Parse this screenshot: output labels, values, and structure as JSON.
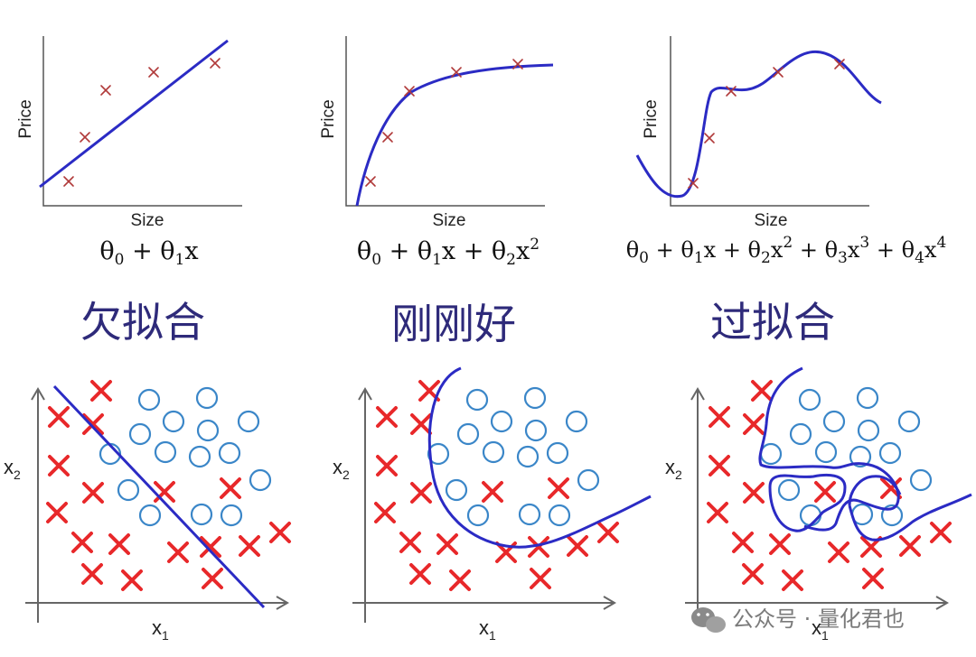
{
  "regression_panels": [
    {
      "xlabel": "Size",
      "ylabel": "Price",
      "formula": "θ0 + θ1x",
      "formula_parts": [
        {
          "t": "θ"
        },
        {
          "t": "0",
          "sub": true
        },
        {
          "t": " + θ"
        },
        {
          "t": "1",
          "sub": true
        },
        {
          "t": "x"
        }
      ]
    },
    {
      "xlabel": "Size",
      "ylabel": "Price",
      "formula": "θ0 + θ1x + θ2x2",
      "formula_parts": [
        {
          "t": "θ"
        },
        {
          "t": "0",
          "sub": true
        },
        {
          "t": " + θ"
        },
        {
          "t": "1",
          "sub": true
        },
        {
          "t": "x + θ"
        },
        {
          "t": "2",
          "sub": true
        },
        {
          "t": "x"
        },
        {
          "t": "2",
          "sup": true
        }
      ]
    },
    {
      "xlabel": "Size",
      "ylabel": "Price",
      "formula": "θ0 + θ1x + θ2x2 + θ3x3 + θ4x4",
      "formula_parts": [
        {
          "t": "θ"
        },
        {
          "t": "0",
          "sub": true
        },
        {
          "t": " + θ"
        },
        {
          "t": "1",
          "sub": true
        },
        {
          "t": "x + θ"
        },
        {
          "t": "2",
          "sub": true
        },
        {
          "t": "x"
        },
        {
          "t": "2",
          "sup": true
        },
        {
          "t": " + θ"
        },
        {
          "t": "3",
          "sub": true
        },
        {
          "t": "x"
        },
        {
          "t": "3",
          "sup": true
        },
        {
          "t": " + θ"
        },
        {
          "t": "4",
          "sub": true
        },
        {
          "t": "x"
        },
        {
          "t": "4",
          "sup": true
        }
      ]
    }
  ],
  "fit_labels": [
    "欠拟合",
    "刚刚好",
    "过拟合"
  ],
  "classification_panels": [
    {
      "x_axis": {
        "base": "x",
        "sub": "1"
      },
      "y_axis": {
        "base": "x",
        "sub": "2"
      }
    },
    {
      "x_axis": {
        "base": "x",
        "sub": "1"
      },
      "y_axis": {
        "base": "x",
        "sub": "2"
      }
    },
    {
      "x_axis": {
        "base": "x",
        "sub": "1"
      },
      "y_axis": {
        "base": "x",
        "sub": "2"
      }
    }
  ],
  "watermark": "公众号 · 量化君也",
  "colors": {
    "curve": "#2b2bc4",
    "cross_small": "#b03a3a",
    "cross": "#e8282a",
    "circle": "#3a86c8",
    "label": "#2e2a7a",
    "axis": "#555555"
  }
}
